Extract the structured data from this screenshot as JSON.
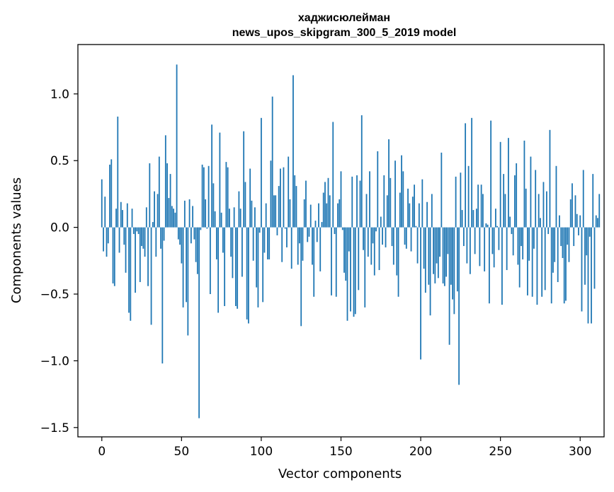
{
  "chart_data": {
    "type": "bar",
    "title": "хаджисюлейман",
    "subtitle": "news_upos_skipgram_300_5_2019 model",
    "xlabel": "Vector components",
    "ylabel": "Components values",
    "xlim": [
      -15,
      315
    ],
    "ylim": [
      -1.57,
      1.37
    ],
    "xticks": [
      0,
      50,
      100,
      150,
      200,
      250,
      300
    ],
    "xtick_labels": [
      "0",
      "50",
      "100",
      "150",
      "200",
      "250",
      "300"
    ],
    "yticks": [
      -1.5,
      -1.0,
      -0.5,
      0.0,
      0.5,
      1.0
    ],
    "ytick_labels": [
      "−1.5",
      "−1.0",
      "−0.5",
      "0.0",
      "0.5",
      "1.0"
    ],
    "color": "#1f77b4",
    "grid": false,
    "legend": "none",
    "values": [
      0.36,
      -0.18,
      0.23,
      -0.22,
      -0.12,
      0.47,
      0.51,
      -0.42,
      -0.44,
      0.14,
      0.83,
      -0.19,
      0.19,
      0.13,
      -0.13,
      -0.34,
      0.18,
      -0.64,
      -0.7,
      0.14,
      -0.05,
      -0.49,
      -0.03,
      -0.05,
      -0.41,
      -0.14,
      -0.16,
      -0.22,
      0.15,
      -0.44,
      0.48,
      -0.73,
      0.04,
      0.27,
      -0.22,
      0.25,
      0.53,
      -0.16,
      -1.02,
      -0.1,
      0.69,
      0.48,
      0.22,
      0.4,
      0.16,
      0.14,
      0.11,
      1.22,
      -0.09,
      -0.13,
      -0.27,
      -0.6,
      0.2,
      -0.56,
      -0.81,
      0.21,
      -0.12,
      0.16,
      -0.09,
      -0.26,
      -0.35,
      -1.43,
      -0.02,
      0.47,
      0.45,
      0.21,
      -0.01,
      0.46,
      -0.5,
      0.77,
      0.33,
      0.12,
      -0.24,
      -0.64,
      0.71,
      0.11,
      -0.19,
      -0.59,
      0.49,
      0.45,
      0.14,
      -0.22,
      -0.38,
      0.15,
      -0.59,
      -0.61,
      0.27,
      0.14,
      -0.37,
      0.72,
      0.34,
      -0.69,
      -0.72,
      0.44,
      0.2,
      -0.25,
      0.15,
      -0.45,
      -0.6,
      -0.04,
      0.82,
      -0.56,
      -0.19,
      0.18,
      -0.24,
      -0.24,
      0.5,
      0.98,
      0.24,
      0.24,
      -0.06,
      0.31,
      0.44,
      -0.26,
      0.45,
      -0.01,
      -0.15,
      0.53,
      0.21,
      -0.31,
      1.14,
      0.39,
      0.31,
      -0.28,
      -0.12,
      -0.74,
      -0.25,
      0.21,
      0.35,
      -0.11,
      -0.07,
      0.17,
      -0.28,
      -0.52,
      0.05,
      -0.11,
      0.18,
      -0.33,
      0.04,
      0.26,
      0.34,
      0.18,
      0.37,
      0.24,
      -0.51,
      0.79,
      -0.05,
      -0.52,
      0.18,
      0.21,
      0.42,
      -0.02,
      -0.34,
      -0.4,
      -0.7,
      -0.18,
      -0.63,
      0.38,
      -0.67,
      -0.65,
      0.39,
      -0.47,
      0.35,
      0.84,
      -0.17,
      -0.6,
      0.25,
      -0.22,
      0.42,
      -0.28,
      -0.12,
      -0.36,
      -0.03,
      0.57,
      -0.32,
      0.08,
      -0.13,
      0.39,
      -0.15,
      0.24,
      0.66,
      0.37,
      -0.14,
      -0.28,
      0.5,
      -0.36,
      -0.52,
      0.26,
      0.54,
      0.42,
      -0.13,
      -0.16,
      0.29,
      0.18,
      -0.18,
      0.23,
      0.32,
      0.01,
      -0.27,
      0.18,
      -0.99,
      0.36,
      -0.31,
      -0.49,
      0.19,
      -0.43,
      -0.66,
      0.25,
      -0.35,
      -0.42,
      -0.27,
      -0.38,
      -0.22,
      0.56,
      -0.42,
      -0.44,
      -0.37,
      -0.2,
      -0.88,
      -0.43,
      -0.54,
      -0.65,
      0.38,
      -0.48,
      -1.18,
      0.41,
      0.13,
      -0.14,
      0.78,
      -0.27,
      0.46,
      -0.35,
      0.82,
      0.13,
      -0.2,
      0.14,
      0.32,
      -0.29,
      0.32,
      0.25,
      -0.33,
      0.03,
      0.02,
      -0.57,
      0.8,
      -0.2,
      -0.3,
      0.14,
      0.01,
      -0.17,
      0.64,
      -0.58,
      0.4,
      0.25,
      -0.32,
      0.67,
      0.08,
      -0.05,
      -0.21,
      0.39,
      0.48,
      -0.28,
      -0.45,
      -0.14,
      -0.24,
      0.65,
      0.29,
      -0.51,
      -0.25,
      0.53,
      -0.52,
      -0.16,
      0.43,
      -0.58,
      0.25,
      0.07,
      -0.52,
      0.34,
      -0.47,
      0.27,
      -0.05,
      0.73,
      -0.57,
      -0.34,
      -0.26,
      0.46,
      -0.41,
      0.09,
      -0.14,
      -0.23,
      -0.57,
      -0.55,
      -0.13,
      -0.26,
      0.21,
      0.33,
      -0.14,
      0.24,
      0.1,
      -0.06,
      0.09,
      -0.63,
      0.43,
      -0.43,
      -0.21,
      -0.72,
      -0.07,
      -0.72,
      0.4,
      -0.46,
      0.09,
      0.07,
      0.25
    ]
  }
}
